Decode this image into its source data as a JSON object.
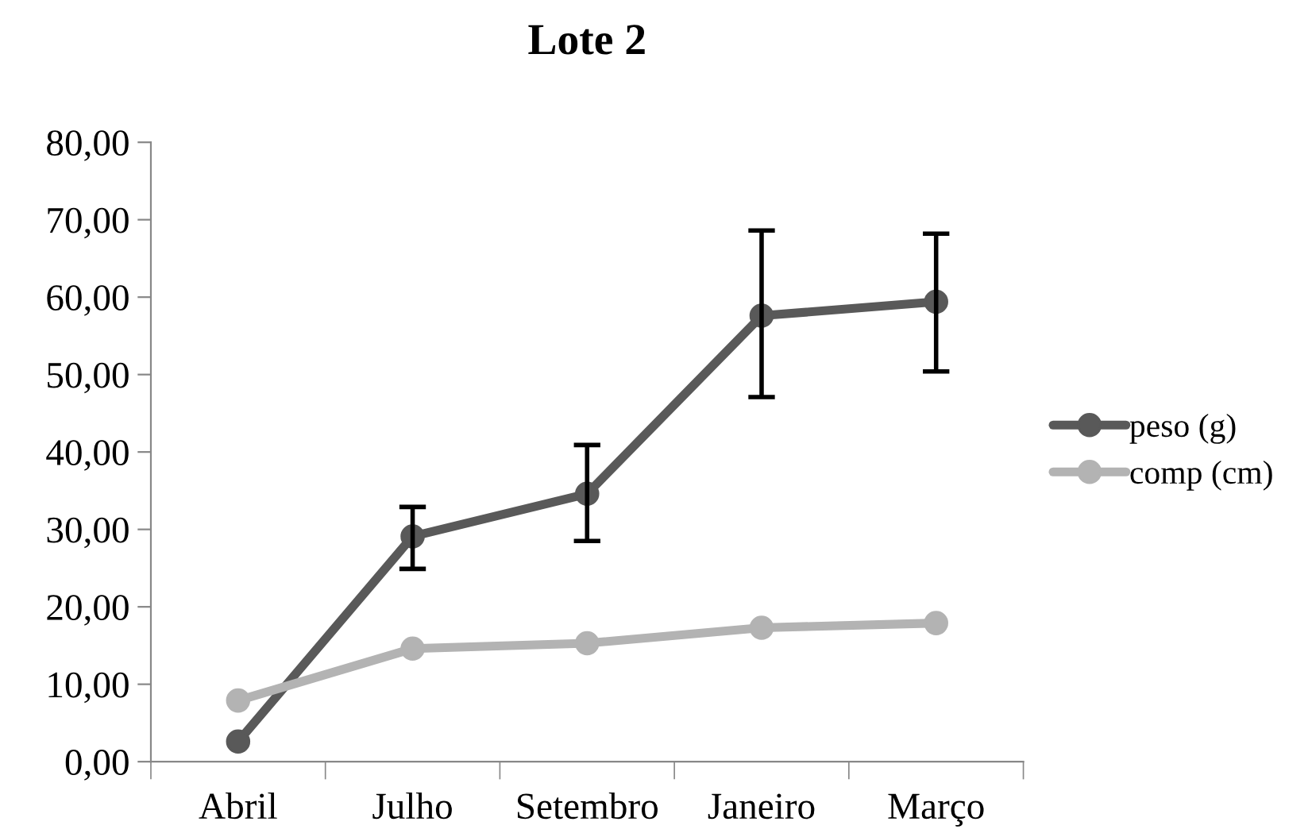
{
  "chart_data": {
    "type": "line",
    "title": "Lote 2",
    "categories": [
      "Abril",
      "Julho",
      "Setembro",
      "Janeiro",
      "Março"
    ],
    "series": [
      {
        "name": "peso (g)",
        "color": "#595959",
        "values": [
          2.6,
          29.1,
          34.6,
          57.6,
          59.4
        ],
        "errors": [
          null,
          [
            24.9,
            32.9
          ],
          [
            28.5,
            40.9
          ],
          [
            47.1,
            68.6
          ],
          [
            50.4,
            68.2
          ]
        ]
      },
      {
        "name": "comp (cm)",
        "color": "#b3b3b3",
        "values": [
          7.9,
          14.6,
          15.3,
          17.3,
          17.9
        ]
      }
    ],
    "ylim": [
      0,
      80
    ],
    "yticks": [
      {
        "value": 0,
        "label": "0,00"
      },
      {
        "value": 10,
        "label": "10,00"
      },
      {
        "value": 20,
        "label": "20,00"
      },
      {
        "value": 30,
        "label": "30,00"
      },
      {
        "value": 40,
        "label": "40,00"
      },
      {
        "value": 50,
        "label": "50,00"
      },
      {
        "value": 60,
        "label": "60,00"
      },
      {
        "value": 70,
        "label": "70,00"
      },
      {
        "value": 80,
        "label": "80,00"
      }
    ],
    "grid": false,
    "legend": "right",
    "marker": "circle",
    "line_style": "solid"
  }
}
